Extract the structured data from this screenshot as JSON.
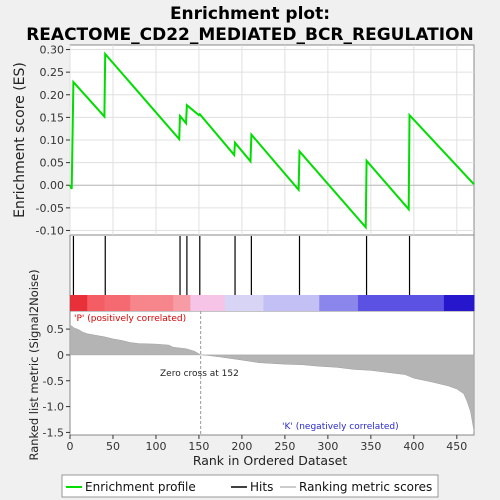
{
  "chart_data": {
    "type": "line",
    "title_line1": "Enrichment plot:",
    "title_line2": "REACTOME_CD22_MEDIATED_BCR_REGULATION",
    "top_panel": {
      "ylabel": "Enrichment score (ES)",
      "ylim": [
        -0.11,
        0.31
      ],
      "yticks": [
        -0.1,
        -0.05,
        0.0,
        0.05,
        0.1,
        0.15,
        0.2,
        0.25,
        0.3
      ],
      "ytick_labels": [
        "-0.10",
        "-0.05",
        "0.00",
        "0.05",
        "0.10",
        "0.15",
        "0.20",
        "0.25",
        "0.30"
      ],
      "series_name": "Enrichment profile",
      "line_color": "#00dd00",
      "points": [
        [
          0,
          0.0
        ],
        [
          2,
          -0.008
        ],
        [
          4,
          0.228
        ],
        [
          40,
          0.152
        ],
        [
          41,
          0.29
        ],
        [
          127,
          0.102
        ],
        [
          128,
          0.153
        ],
        [
          135,
          0.137
        ],
        [
          136,
          0.177
        ],
        [
          150,
          0.155
        ],
        [
          151,
          0.157
        ],
        [
          191,
          0.067
        ],
        [
          192,
          0.094
        ],
        [
          210,
          0.053
        ],
        [
          211,
          0.112
        ],
        [
          266,
          -0.01
        ],
        [
          267,
          0.075
        ],
        [
          344,
          -0.093
        ],
        [
          345,
          0.054
        ],
        [
          394,
          -0.053
        ],
        [
          395,
          0.155
        ],
        [
          470,
          0.002
        ]
      ]
    },
    "hits": {
      "series_name": "Hits",
      "positions": [
        4,
        41,
        128,
        136,
        151,
        192,
        211,
        267,
        345,
        395
      ]
    },
    "bottom_panel": {
      "ylabel": "Ranked list metric (Signal2Noise)",
      "ylim": [
        -1.55,
        0.85
      ],
      "yticks": [
        0.5,
        0.0,
        -0.5,
        -1.0,
        -1.5
      ],
      "ytick_labels": [
        "0.5",
        "0",
        "-0.5",
        "-1.0",
        "-1.5"
      ],
      "series_name": "Ranking metric scores",
      "metric_points": [
        [
          0,
          0.58
        ],
        [
          5,
          0.52
        ],
        [
          10,
          0.49
        ],
        [
          15,
          0.44
        ],
        [
          20,
          0.41
        ],
        [
          30,
          0.38
        ],
        [
          40,
          0.35
        ],
        [
          50,
          0.31
        ],
        [
          60,
          0.28
        ],
        [
          70,
          0.24
        ],
        [
          80,
          0.22
        ],
        [
          100,
          0.21
        ],
        [
          115,
          0.19
        ],
        [
          120,
          0.15
        ],
        [
          135,
          0.12
        ],
        [
          145,
          0.07
        ],
        [
          151,
          0.01
        ],
        [
          152,
          0.0
        ],
        [
          160,
          -0.01
        ],
        [
          175,
          -0.04
        ],
        [
          200,
          -0.1
        ],
        [
          220,
          -0.15
        ],
        [
          250,
          -0.18
        ],
        [
          270,
          -0.19
        ],
        [
          290,
          -0.22
        ],
        [
          310,
          -0.24
        ],
        [
          330,
          -0.28
        ],
        [
          350,
          -0.3
        ],
        [
          370,
          -0.34
        ],
        [
          390,
          -0.38
        ],
        [
          400,
          -0.45
        ],
        [
          420,
          -0.52
        ],
        [
          440,
          -0.6
        ],
        [
          450,
          -0.66
        ],
        [
          458,
          -0.75
        ],
        [
          462,
          -0.9
        ],
        [
          466,
          -1.1
        ],
        [
          470,
          -1.48
        ]
      ],
      "zero_cross_label": "Zero cross at 152",
      "zero_cross_rank": 152,
      "positive_label": "'P' (positively correlated)",
      "negative_label": "'K' (negatively correlated)"
    },
    "x_axis": {
      "xlabel": "Rank in Ordered Dataset",
      "xlim": [
        0,
        470
      ],
      "xticks": [
        0,
        50,
        100,
        150,
        200,
        250,
        300,
        350,
        400,
        450
      ],
      "xtick_labels": [
        "0",
        "50",
        "100",
        "150",
        "200",
        "250",
        "300",
        "350",
        "400",
        "450"
      ]
    },
    "colorbar_segments": [
      {
        "from": 0,
        "to": 20,
        "color": "#e8303a"
      },
      {
        "from": 20,
        "to": 40,
        "color": "#f45d63"
      },
      {
        "from": 40,
        "to": 70,
        "color": "#f46a70"
      },
      {
        "from": 70,
        "to": 120,
        "color": "#f6868c"
      },
      {
        "from": 120,
        "to": 140,
        "color": "#f79ba4"
      },
      {
        "from": 140,
        "to": 180,
        "color": "#f6c4e6"
      },
      {
        "from": 180,
        "to": 225,
        "color": "#d8d4f6"
      },
      {
        "from": 225,
        "to": 290,
        "color": "#c2c0f4"
      },
      {
        "from": 290,
        "to": 335,
        "color": "#8a86ec"
      },
      {
        "from": 335,
        "to": 435,
        "color": "#5b52e4"
      },
      {
        "from": 435,
        "to": 470,
        "color": "#2616cc"
      }
    ],
    "legend": [
      "Enrichment profile",
      "Hits",
      "Ranking metric scores"
    ]
  }
}
